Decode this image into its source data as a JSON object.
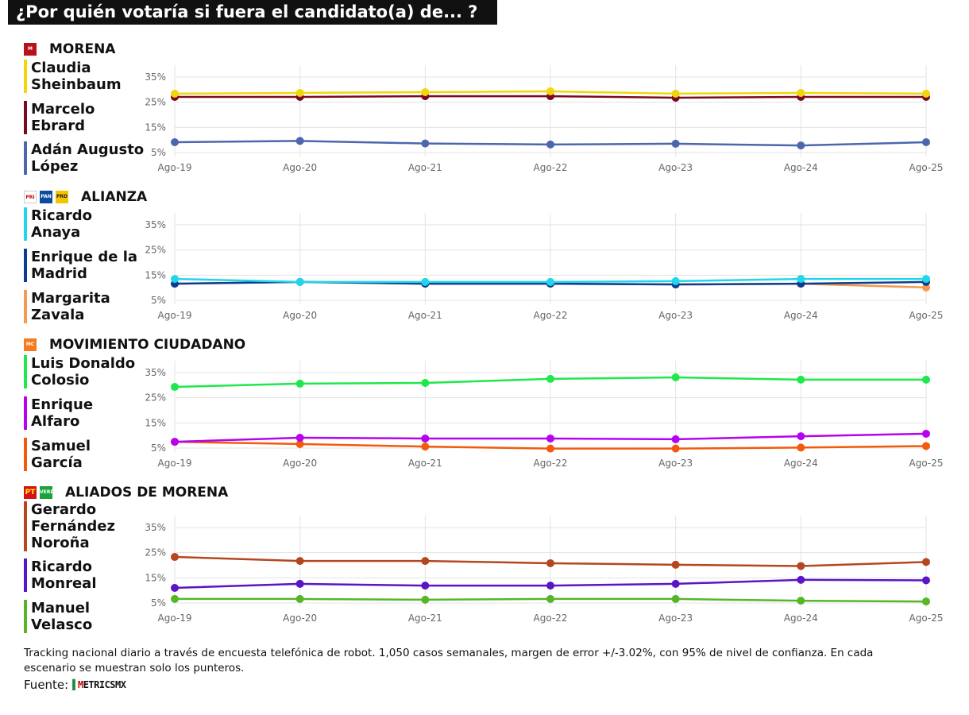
{
  "title": "¿Por quién votaría si fuera el candidato(a) de... ?",
  "chart_data": {
    "type": "line",
    "x": [
      "Ago-19",
      "Ago-20",
      "Ago-21",
      "Ago-22",
      "Ago-23",
      "Ago-24",
      "Ago-25"
    ],
    "y_ticks": [
      "5%",
      "15%",
      "25%",
      "35%"
    ],
    "ylim": [
      5,
      35
    ],
    "grid": true,
    "panels": [
      {
        "party": "MORENA",
        "logo": "morena-logo",
        "series": [
          {
            "name": "Claudia\nSheinbaum",
            "color": "#f2d60c",
            "values": [
              28.4,
              28.7,
              29.0,
              29.3,
              28.4,
              28.7,
              28.4
            ]
          },
          {
            "name": "Marcelo\nEbrard",
            "color": "#7a0a22",
            "values": [
              27.1,
              27.1,
              27.4,
              27.4,
              26.8,
              27.1,
              27.1
            ]
          },
          {
            "name": "Adán Augusto\nLópez",
            "color": "#4d66ad",
            "values": [
              9.1,
              9.6,
              8.6,
              8.2,
              8.5,
              7.8,
              9.1
            ]
          }
        ]
      },
      {
        "party": "ALIANZA",
        "logo": "pri-pan-prd-logos",
        "series": [
          {
            "name": "Ricardo\nAnaya",
            "color": "#22d6ea",
            "values": [
              13.5,
              12.3,
              12.3,
              12.3,
              12.6,
              13.5,
              13.5
            ]
          },
          {
            "name": "Enrique de la\nMadrid",
            "color": "#0c3d91",
            "values": [
              11.6,
              12.3,
              11.6,
              11.6,
              11.3,
              11.6,
              12.3
            ]
          },
          {
            "name": "Margarita\nZavala",
            "color": "#f59a4e",
            "values": [
              11.6,
              12.3,
              11.6,
              11.6,
              11.3,
              11.6,
              10.1
            ]
          }
        ]
      },
      {
        "party": "MOVIMIENTO CIUDADANO",
        "logo": "mc-logo",
        "series": [
          {
            "name": "Luis Donaldo\nColosio",
            "color": "#1ee84c",
            "values": [
              29.3,
              30.6,
              30.9,
              32.5,
              33.1,
              32.2,
              32.2
            ]
          },
          {
            "name": "Enrique\nAlfaro",
            "color": "#b602ef",
            "values": [
              7.5,
              9.1,
              8.8,
              8.8,
              8.5,
              9.7,
              10.7
            ]
          },
          {
            "name": "Samuel\nGarcía",
            "color": "#f25b0c",
            "values": [
              7.5,
              6.6,
              5.6,
              4.8,
              4.8,
              5.2,
              5.8
            ]
          }
        ]
      },
      {
        "party": "ALIADOS DE MORENA",
        "logo": "pt-pvem-logos",
        "series": [
          {
            "name": "Gerardo\nFernández\nNoroña",
            "color": "#b4471f",
            "values": [
              23.3,
              21.7,
              21.7,
              20.8,
              20.2,
              19.7,
              21.3
            ]
          },
          {
            "name": "Ricardo\nMonreal",
            "color": "#5b14c6",
            "values": [
              11.0,
              12.6,
              11.9,
              11.9,
              12.6,
              14.2,
              14.0
            ]
          },
          {
            "name": "Manuel\nVelasco",
            "color": "#56b628",
            "values": [
              6.6,
              6.6,
              6.3,
              6.6,
              6.6,
              5.9,
              5.6
            ]
          }
        ]
      }
    ]
  },
  "footer": {
    "note": "Tracking nacional diario a través de encuesta telefónica de robot. 1,050 casos semanales, margen de error +/-3.02%, con 95% de nivel de confianza. En cada escenario se muestran solo los punteros.",
    "source_label": "Fuente:",
    "source_logo": "METRICSMX"
  }
}
